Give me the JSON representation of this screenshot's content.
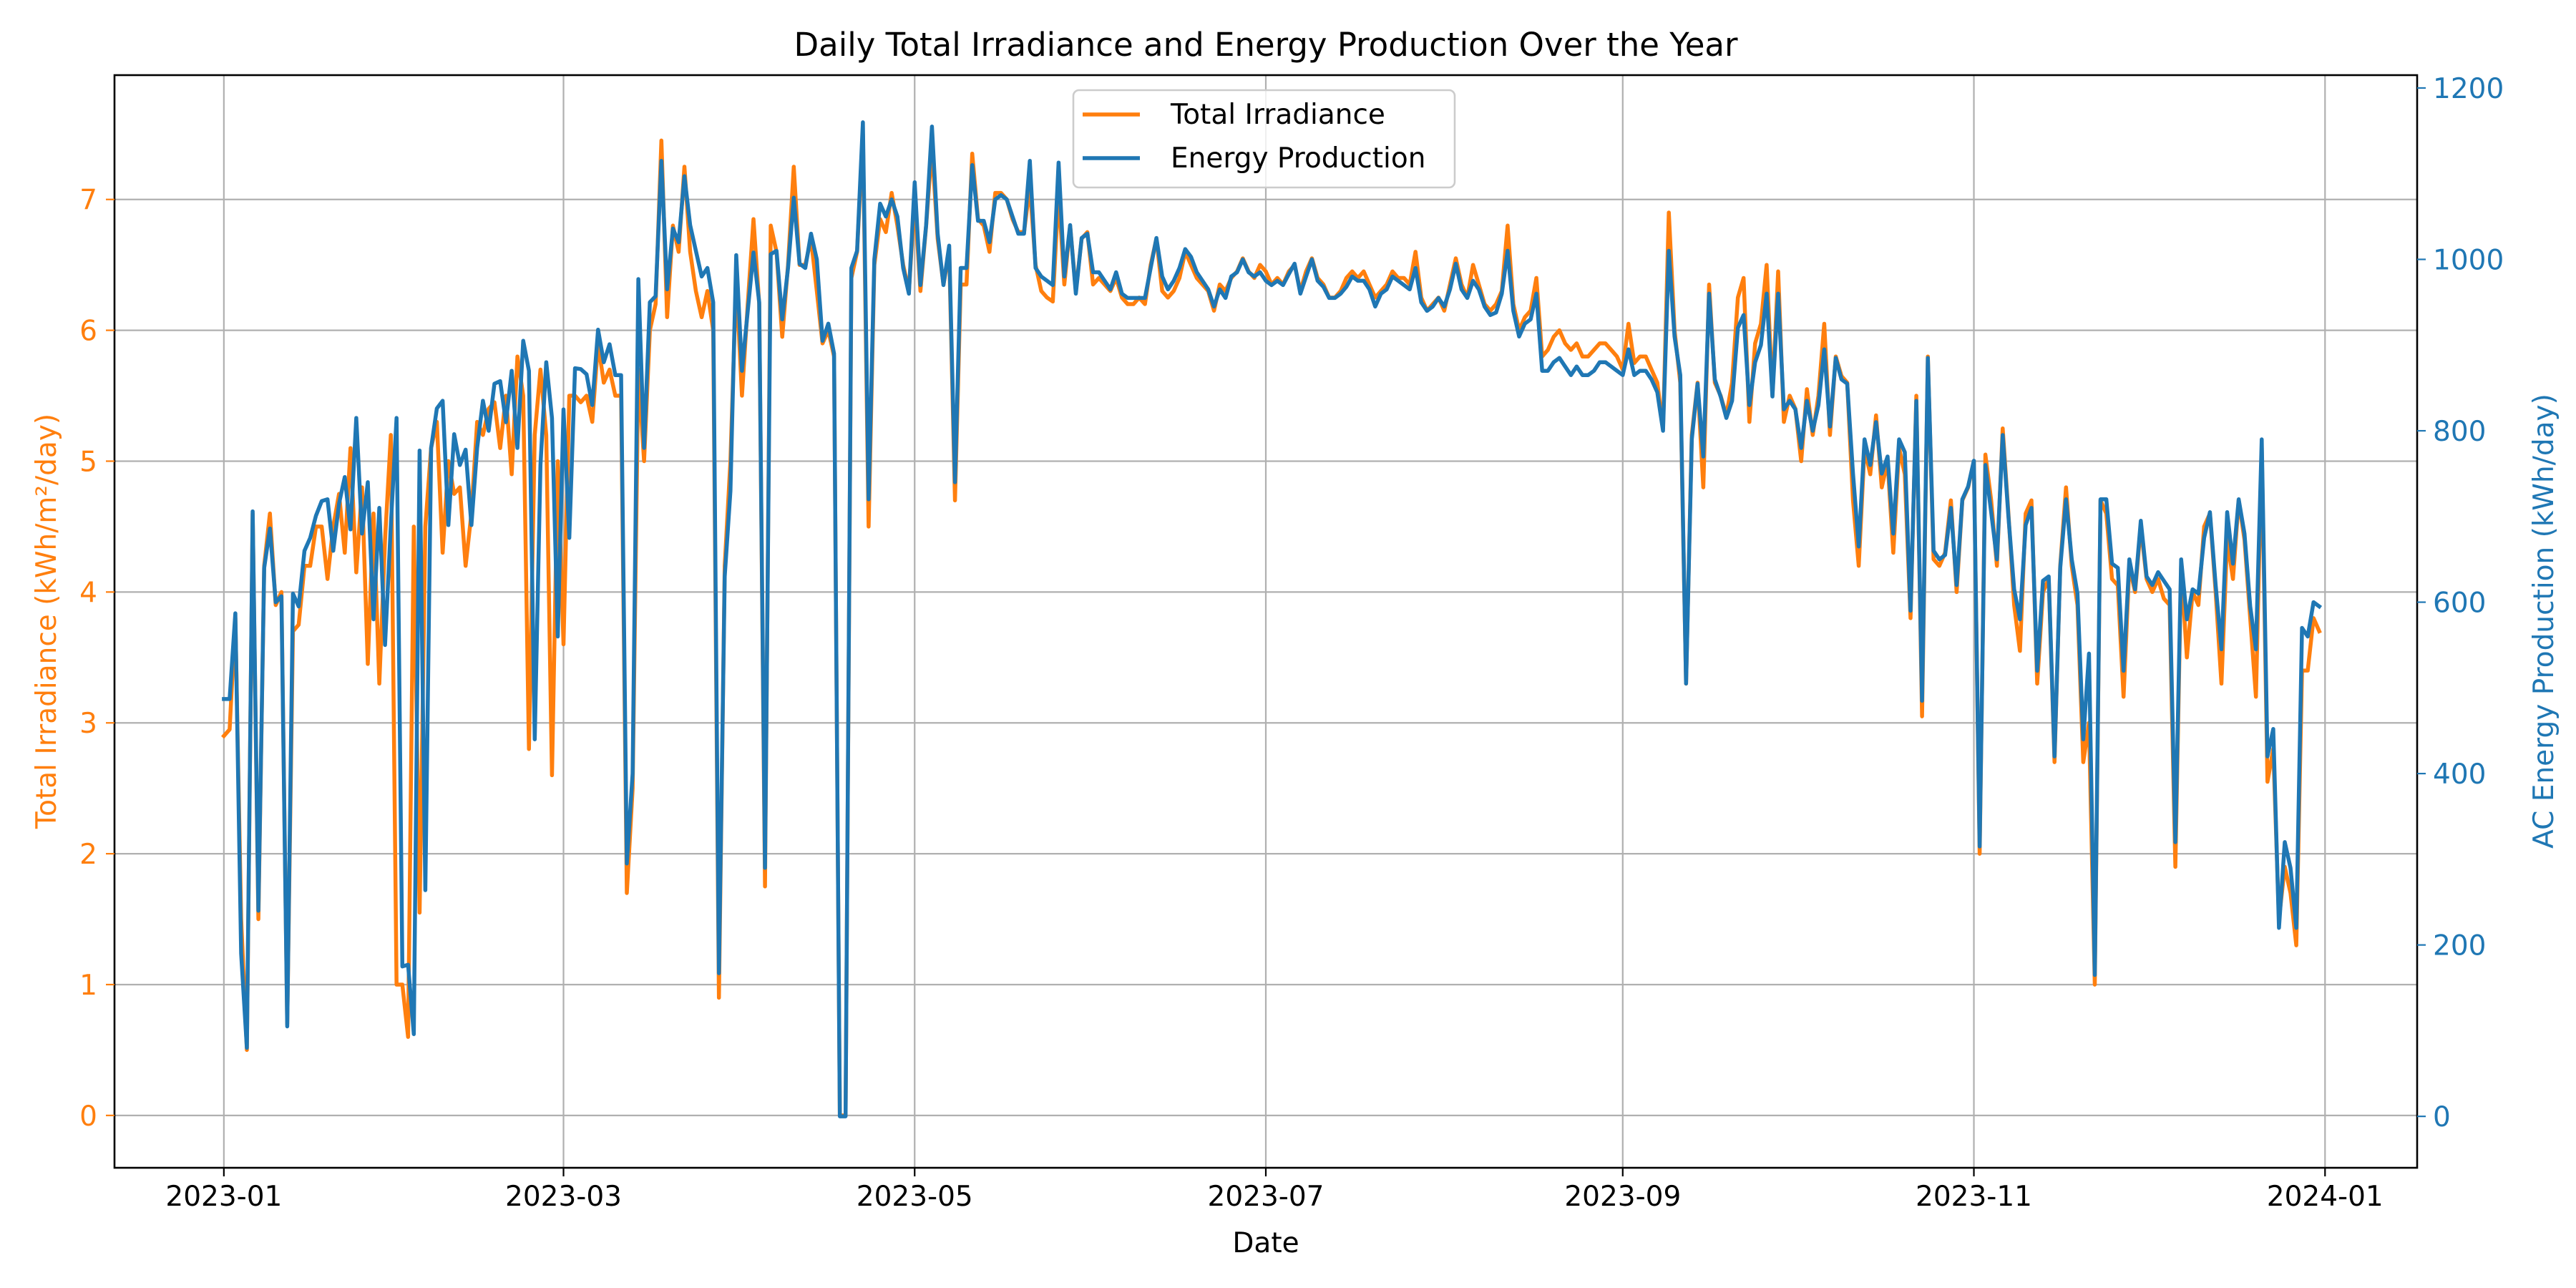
{
  "chart_data": {
    "type": "line",
    "title": "Daily Total Irradiance and Energy Production Over the Year",
    "xlabel": "Date",
    "ylabel_left": "Total Irradiance (kWh/m²/day)",
    "ylabel_right": "AC Energy Production (kWh/day)",
    "xlim": [
      "2022-12-13",
      "2024-01-17"
    ],
    "ylim_left": [
      -0.4,
      7.95
    ],
    "ylim_right": [
      -60,
      1215
    ],
    "x_ticks": [
      "2023-01",
      "2023-03",
      "2023-05",
      "2023-07",
      "2023-09",
      "2023-11",
      "2024-01"
    ],
    "y_ticks_left": [
      0,
      1,
      2,
      3,
      4,
      5,
      6,
      7
    ],
    "y_ticks_right": [
      0,
      200,
      400,
      600,
      800,
      1000,
      1200
    ],
    "grid": true,
    "legend_position": "upper-center",
    "x_start": "2023-01-01",
    "x_end": "2023-12-31",
    "series": [
      {
        "name": "Total Irradiance",
        "axis": "left",
        "color": "#ff7f0e",
        "values": [
          2.9,
          2.95,
          3.8,
          1.5,
          0.5,
          4.6,
          1.5,
          4.2,
          4.6,
          3.9,
          4.0,
          0.7,
          3.7,
          3.75,
          4.2,
          4.2,
          4.5,
          4.5,
          4.1,
          4.5,
          4.75,
          4.3,
          5.1,
          4.15,
          4.8,
          3.45,
          4.6,
          3.3,
          4.4,
          5.2,
          1.0,
          1.0,
          0.6,
          4.5,
          1.55,
          4.5,
          5.1,
          5.3,
          4.3,
          5.0,
          4.75,
          4.8,
          4.2,
          4.6,
          5.3,
          5.2,
          5.4,
          5.45,
          5.1,
          5.5,
          4.9,
          5.8,
          5.5,
          2.8,
          5.2,
          5.7,
          5.2,
          2.6,
          5.0,
          3.6,
          5.5,
          5.5,
          5.45,
          5.5,
          5.3,
          5.9,
          5.6,
          5.7,
          5.5,
          5.5,
          1.7,
          2.5,
          5.7,
          5.0,
          6.0,
          6.2,
          7.45,
          6.1,
          6.8,
          6.6,
          7.25,
          6.6,
          6.3,
          6.1,
          6.3,
          6.0,
          0.9,
          4.2,
          5.0,
          6.4,
          5.5,
          6.2,
          6.85,
          6.2,
          1.75,
          6.8,
          6.6,
          5.95,
          6.5,
          7.25,
          6.5,
          6.5,
          6.7,
          6.3,
          5.9,
          6.0,
          5.8,
          0.0,
          0.0,
          6.4,
          6.6,
          7.5,
          4.5,
          6.5,
          6.85,
          6.75,
          7.05,
          6.8,
          6.5,
          6.3,
          7.0,
          6.3,
          6.8,
          7.4,
          6.7,
          6.35,
          6.6,
          4.7,
          6.35,
          6.35,
          7.35,
          6.85,
          6.8,
          6.6,
          7.05,
          7.05,
          7.0,
          6.85,
          6.75,
          6.75,
          7.1,
          6.5,
          6.3,
          6.25,
          6.22,
          7.05,
          6.35,
          6.8,
          6.3,
          6.7,
          6.75,
          6.35,
          6.4,
          6.35,
          6.3,
          6.4,
          6.25,
          6.2,
          6.2,
          6.25,
          6.2,
          6.5,
          6.7,
          6.3,
          6.25,
          6.3,
          6.4,
          6.6,
          6.5,
          6.4,
          6.35,
          6.3,
          6.15,
          6.35,
          6.3,
          6.4,
          6.45,
          6.55,
          6.45,
          6.4,
          6.5,
          6.45,
          6.35,
          6.4,
          6.35,
          6.45,
          6.5,
          6.3,
          6.45,
          6.55,
          6.4,
          6.35,
          6.25,
          6.25,
          6.3,
          6.4,
          6.45,
          6.4,
          6.45,
          6.35,
          6.25,
          6.3,
          6.35,
          6.45,
          6.4,
          6.4,
          6.35,
          6.6,
          6.25,
          6.15,
          6.2,
          6.25,
          6.15,
          6.35,
          6.55,
          6.35,
          6.25,
          6.5,
          6.35,
          6.2,
          6.15,
          6.2,
          6.3,
          6.8,
          6.2,
          6.0,
          6.1,
          6.15,
          6.4,
          5.8,
          5.85,
          5.95,
          6.0,
          5.9,
          5.85,
          5.9,
          5.8,
          5.8,
          5.85,
          5.9,
          5.9,
          5.85,
          5.8,
          5.7,
          6.05,
          5.75,
          5.8,
          5.8,
          5.7,
          5.6,
          5.25,
          6.9,
          6.0,
          5.6,
          3.3,
          5.2,
          5.6,
          4.8,
          6.35,
          5.6,
          5.5,
          5.35,
          5.6,
          6.25,
          6.4,
          5.3,
          5.9,
          6.05,
          6.5,
          5.5,
          6.45,
          5.3,
          5.5,
          5.4,
          5.0,
          5.55,
          5.2,
          5.5,
          6.05,
          5.2,
          5.8,
          5.65,
          5.6,
          4.7,
          4.2,
          5.1,
          4.9,
          5.35,
          4.8,
          5.0,
          4.3,
          5.1,
          4.9,
          3.8,
          5.5,
          3.05,
          5.8,
          4.25,
          4.2,
          4.3,
          4.7,
          4.0,
          4.7,
          4.8,
          5.0,
          2.0,
          5.05,
          4.7,
          4.2,
          5.25,
          4.6,
          3.9,
          3.55,
          4.6,
          4.7,
          3.3,
          4.0,
          4.1,
          2.7,
          4.2,
          4.8,
          4.2,
          3.9,
          2.7,
          3.0,
          1.0,
          4.7,
          4.6,
          4.1,
          4.05,
          3.2,
          4.2,
          4.0,
          4.5,
          4.1,
          4.0,
          4.1,
          3.95,
          3.9,
          1.9,
          4.2,
          3.5,
          4.0,
          3.9,
          4.5,
          4.6,
          4.0,
          3.3,
          4.4,
          4.1,
          4.7,
          4.4,
          3.8,
          3.2,
          5.1,
          2.55,
          2.8,
          1.5,
          1.9,
          1.7,
          1.3,
          3.4,
          3.4,
          3.8,
          3.7
        ]
      },
      {
        "name": "Energy Production",
        "axis": "right",
        "color": "#1f77b4",
        "values": [
          487,
          487,
          587,
          190,
          80,
          706,
          240,
          640,
          686,
          600,
          607,
          105,
          610,
          595,
          660,
          675,
          701,
          718,
          720,
          660,
          715,
          746,
          685,
          815,
          680,
          740,
          580,
          710,
          550,
          690,
          815,
          175,
          177,
          96,
          777,
          264,
          780,
          826,
          835,
          690,
          796,
          760,
          778,
          690,
          780,
          835,
          800,
          855,
          858,
          810,
          870,
          780,
          905,
          870,
          440,
          760,
          880,
          815,
          560,
          825,
          675,
          873,
          872,
          866,
          830,
          918,
          880,
          901,
          865,
          865,
          295,
          400,
          977,
          780,
          950,
          957,
          1115,
          965,
          1036,
          1020,
          1097,
          1040,
          1010,
          980,
          990,
          950,
          167,
          630,
          730,
          1005,
          870,
          940,
          1008,
          950,
          290,
          1006,
          1010,
          930,
          990,
          1072,
          995,
          990,
          1030,
          1000,
          905,
          925,
          890,
          0,
          0,
          990,
          1010,
          1160,
          720,
          1000,
          1065,
          1050,
          1070,
          1050,
          990,
          960,
          1090,
          970,
          1040,
          1155,
          1030,
          970,
          1016,
          740,
          990,
          990,
          1110,
          1045,
          1045,
          1020,
          1070,
          1075,
          1070,
          1050,
          1030,
          1030,
          1115,
          990,
          980,
          975,
          970,
          1113,
          980,
          1040,
          960,
          1025,
          1030,
          985,
          985,
          975,
          965,
          985,
          960,
          955,
          955,
          955,
          955,
          990,
          1025,
          980,
          965,
          975,
          990,
          1012,
          1003,
          985,
          975,
          965,
          945,
          965,
          955,
          980,
          985,
          1000,
          985,
          980,
          985,
          975,
          970,
          975,
          970,
          983,
          995,
          960,
          980,
          1000,
          975,
          968,
          955,
          955,
          960,
          968,
          980,
          975,
          975,
          965,
          945,
          960,
          965,
          980,
          975,
          970,
          965,
          990,
          950,
          940,
          945,
          955,
          945,
          965,
          995,
          965,
          955,
          975,
          965,
          945,
          935,
          938,
          960,
          1010,
          940,
          910,
          925,
          930,
          960,
          870,
          870,
          880,
          885,
          875,
          865,
          875,
          865,
          865,
          870,
          880,
          880,
          875,
          870,
          865,
          895,
          865,
          870,
          870,
          860,
          845,
          800,
          1010,
          910,
          865,
          505,
          790,
          855,
          770,
          960,
          860,
          840,
          815,
          835,
          920,
          935,
          830,
          880,
          900,
          960,
          840,
          960,
          825,
          835,
          825,
          780,
          835,
          800,
          830,
          895,
          805,
          885,
          860,
          855,
          750,
          665,
          790,
          760,
          810,
          750,
          770,
          680,
          790,
          775,
          590,
          835,
          485,
          885,
          660,
          650,
          655,
          710,
          620,
          720,
          735,
          765,
          315,
          760,
          705,
          650,
          795,
          700,
          615,
          580,
          690,
          710,
          520,
          625,
          630,
          420,
          640,
          720,
          650,
          610,
          440,
          540,
          165,
          720,
          720,
          645,
          640,
          520,
          650,
          615,
          695,
          630,
          620,
          635,
          625,
          615,
          320,
          650,
          580,
          615,
          610,
          675,
          705,
          620,
          545,
          705,
          645,
          720,
          680,
          595,
          545,
          790,
          420,
          452,
          220,
          320,
          290,
          220,
          570,
          560,
          600,
          595
        ]
      }
    ]
  }
}
